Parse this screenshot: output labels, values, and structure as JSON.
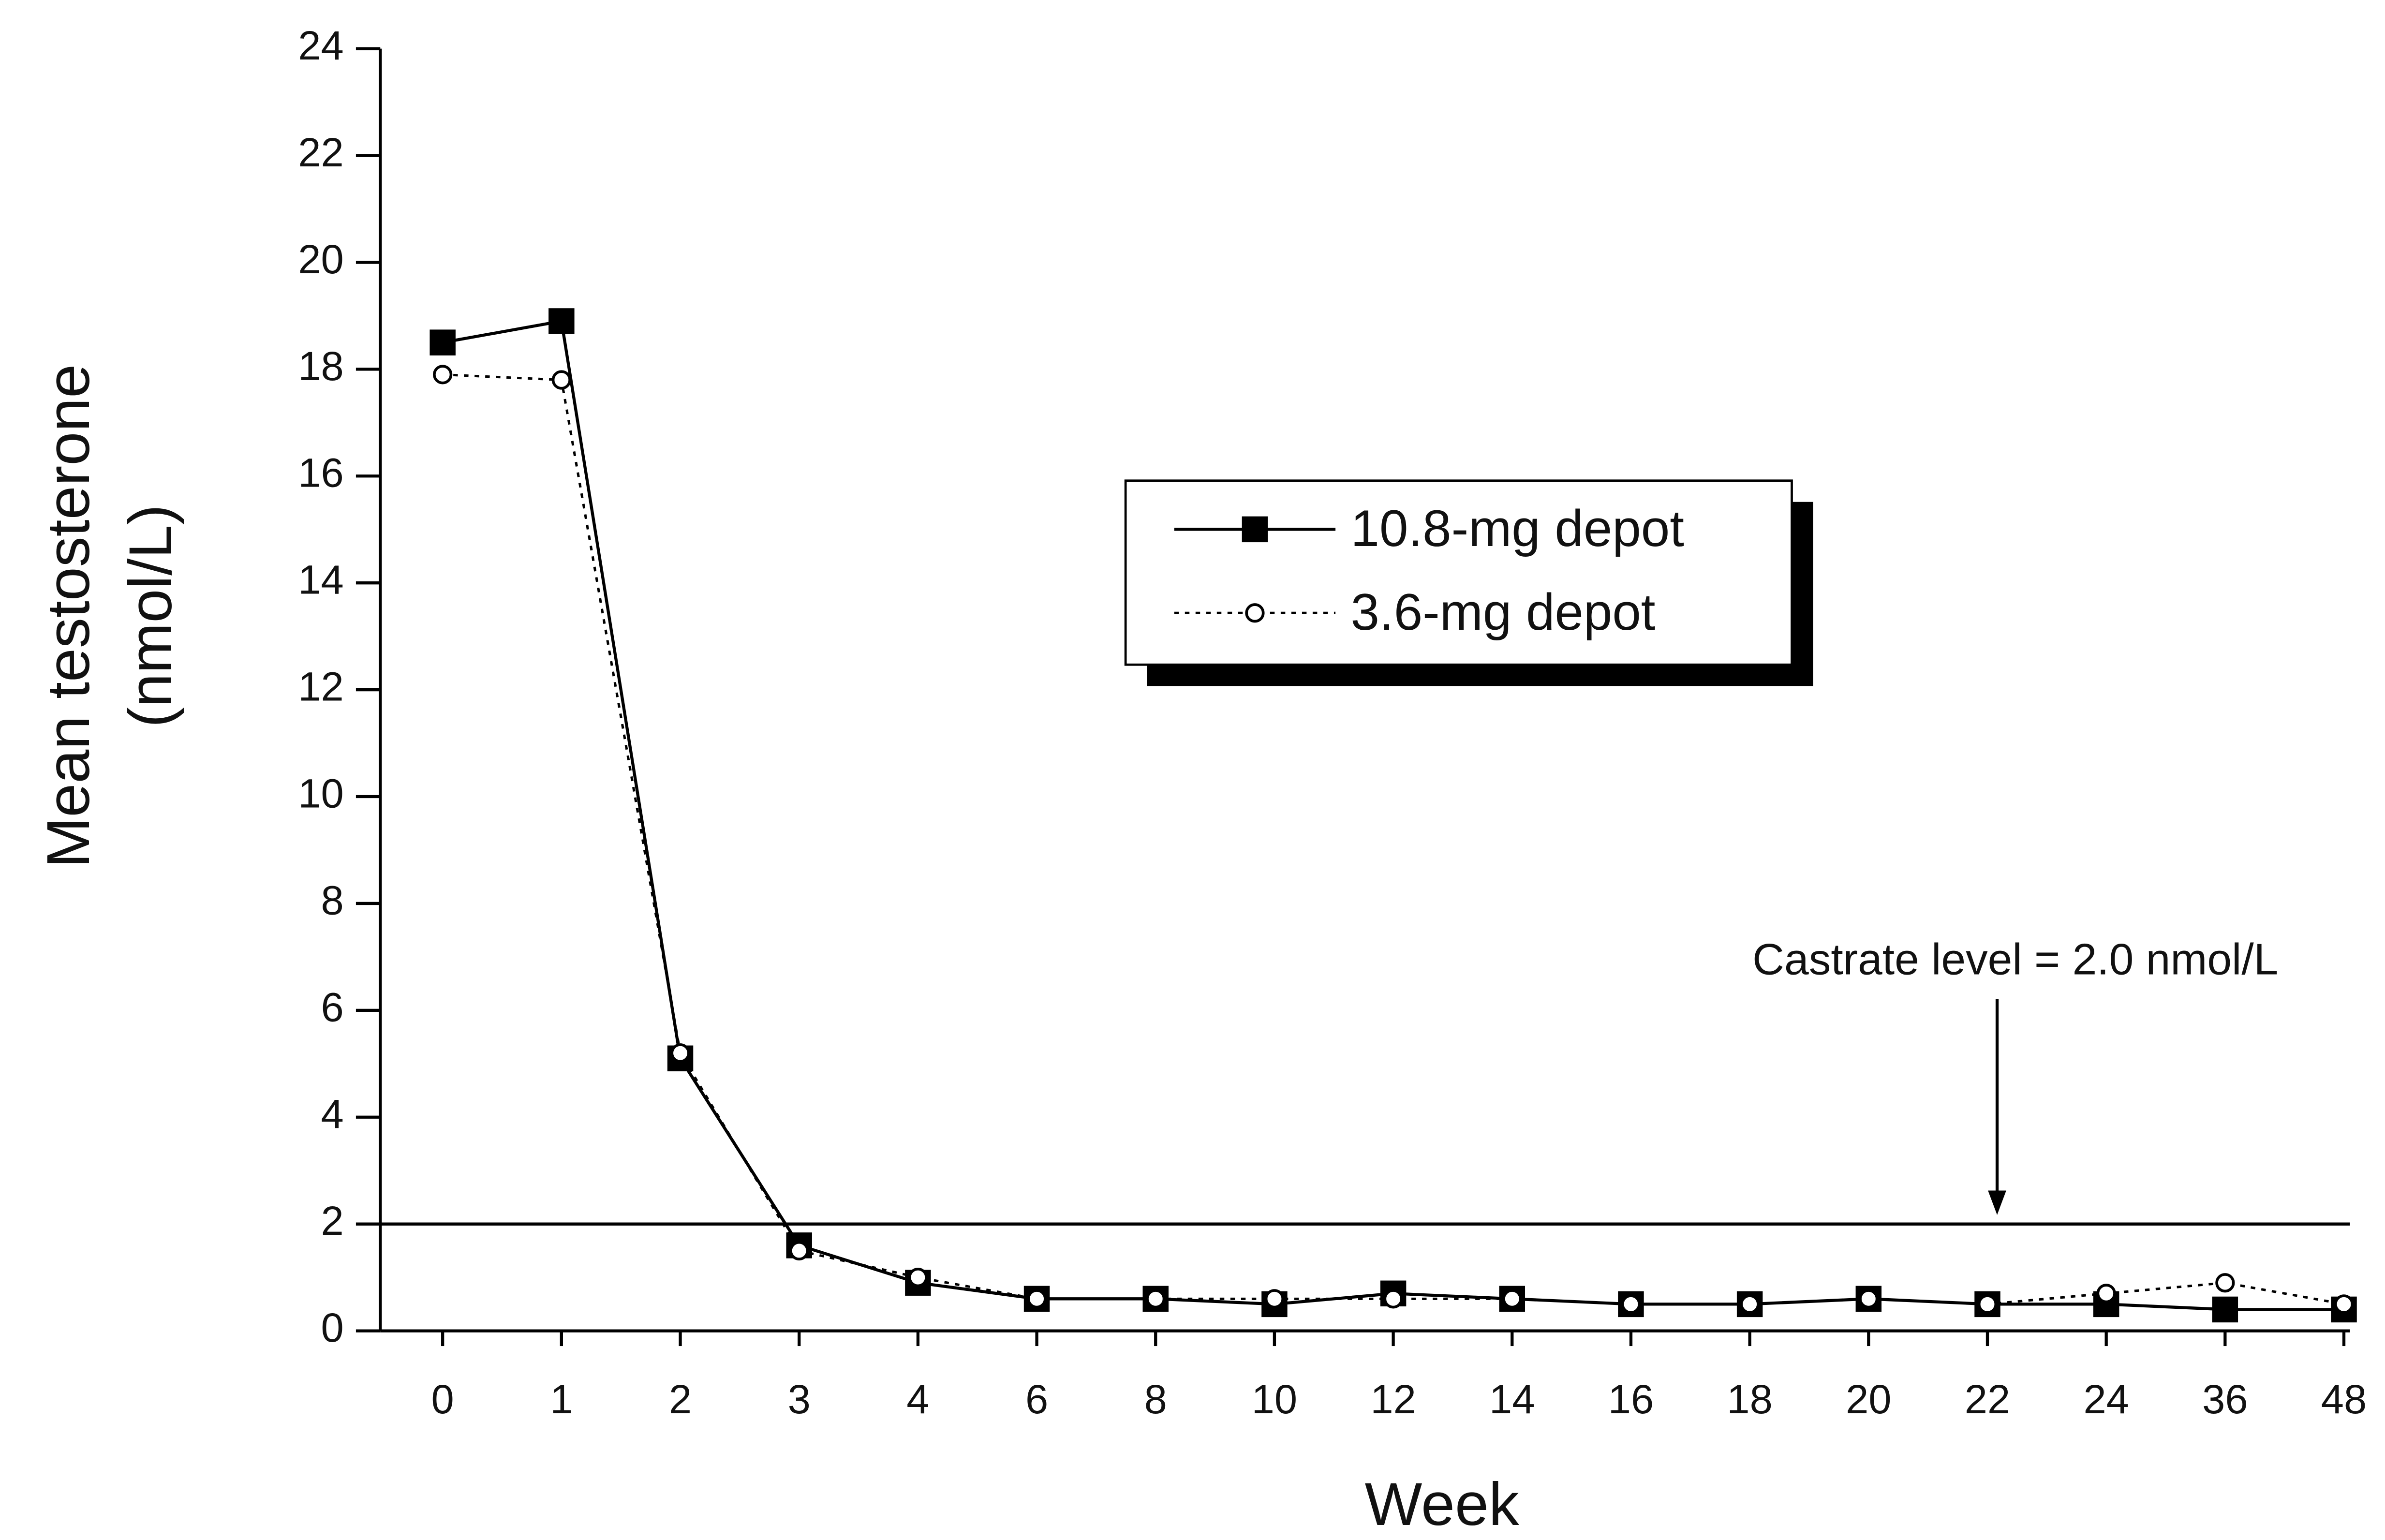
{
  "chart_data": {
    "type": "line",
    "ylabel": [
      "Mean testosterone",
      "(nmol/L)"
    ],
    "xlabel": "Week",
    "categories": [
      "0",
      "1",
      "2",
      "3",
      "4",
      "6",
      "8",
      "10",
      "12",
      "14",
      "16",
      "18",
      "20",
      "22",
      "24",
      "36",
      "48"
    ],
    "series": [
      {
        "name": "10.8-mg depot",
        "color": "#000000",
        "marker": "square",
        "line_style": "solid",
        "values": [
          18.5,
          18.9,
          5.1,
          1.6,
          0.9,
          0.6,
          0.6,
          0.5,
          0.7,
          0.6,
          0.5,
          0.5,
          0.6,
          0.5,
          0.5,
          0.4,
          0.4
        ]
      },
      {
        "name": "3.6-mg depot",
        "color": "#000000",
        "marker": "circle",
        "line_style": "dotted",
        "values": [
          17.9,
          17.8,
          5.2,
          1.5,
          1.0,
          0.6,
          0.6,
          0.6,
          0.6,
          0.6,
          0.5,
          0.5,
          0.6,
          0.5,
          0.7,
          0.9,
          0.5
        ]
      }
    ],
    "ylim": [
      0,
      24
    ],
    "yticks": [
      0,
      2,
      4,
      6,
      8,
      10,
      12,
      14,
      16,
      18,
      20,
      22,
      24
    ],
    "reference_line": {
      "value": 2.0,
      "label": "Castrate level = 2.0 nmol/L"
    },
    "grid": false
  }
}
